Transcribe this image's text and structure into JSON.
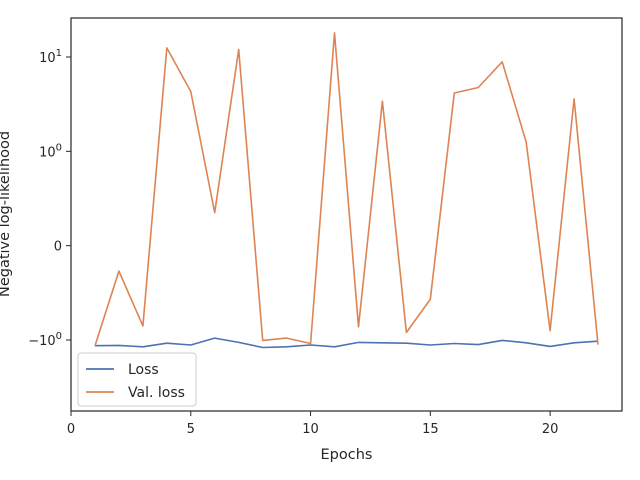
{
  "chart_data": {
    "type": "line",
    "title": "",
    "xlabel": "Epochs",
    "ylabel": "Negative log-likelihood",
    "yscale": "symlog",
    "xlim": [
      0,
      23
    ],
    "xticks": [
      0,
      5,
      10,
      15,
      20
    ],
    "yticks": [
      {
        "value": -1,
        "base": "−",
        "exp": "0",
        "mantissa": "10"
      },
      {
        "value": 0,
        "base": "0",
        "exp": "",
        "mantissa": ""
      },
      {
        "value": 1,
        "base": "",
        "exp": "0",
        "mantissa": "10"
      },
      {
        "value": 10,
        "base": "",
        "exp": "1",
        "mantissa": "10"
      }
    ],
    "grid": false,
    "legend_position": "lower-left",
    "x": [
      1,
      2,
      3,
      4,
      5,
      6,
      7,
      8,
      9,
      10,
      11,
      12,
      13,
      14,
      15,
      16,
      17,
      18,
      19,
      20,
      21,
      22
    ],
    "series": [
      {
        "name": "Loss",
        "color": "#4c72b0",
        "values": [
          -1.15,
          -1.14,
          -1.18,
          -1.08,
          -1.13,
          -0.98,
          -1.06,
          -1.2,
          -1.18,
          -1.13,
          -1.18,
          -1.06,
          -1.07,
          -1.08,
          -1.13,
          -1.09,
          -1.12,
          -1.01,
          -1.07,
          -1.17,
          -1.07,
          -1.03
        ]
      },
      {
        "name": "Val. loss",
        "color": "#dd8452",
        "values": [
          -1.15,
          -0.27,
          -0.85,
          12.5,
          4.3,
          0.35,
          12.0,
          -1.01,
          -0.98,
          -1.09,
          18.0,
          -0.86,
          3.4,
          -0.92,
          -0.57,
          4.15,
          4.75,
          8.9,
          1.25,
          -0.9,
          3.6,
          -1.12
        ]
      }
    ]
  }
}
